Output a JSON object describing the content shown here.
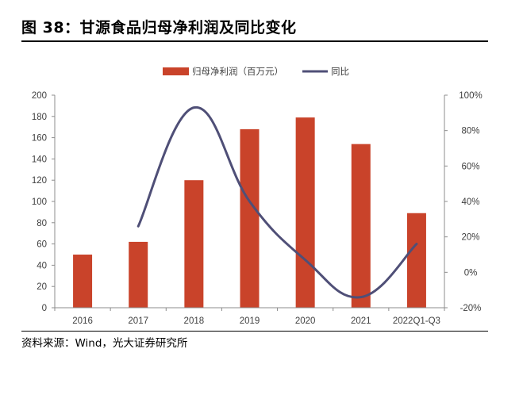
{
  "figure": {
    "title": "图 38：甘源食品归母净利润及同比变化",
    "source": "资料来源：Wind，光大证券研究所"
  },
  "colors": {
    "bar": "#C9432A",
    "line": "#4F4F77",
    "axis": "#8C8C8C",
    "text": "#404040"
  },
  "chart_data": {
    "type": "bar+line",
    "categories": [
      "2016",
      "2017",
      "2018",
      "2019",
      "2020",
      "2021",
      "2022Q1-Q3"
    ],
    "series": [
      {
        "name": "归母净利润（百万元）",
        "type": "bar",
        "axis": "left",
        "values": [
          50,
          62,
          120,
          168,
          179,
          154,
          89
        ]
      },
      {
        "name": "同比",
        "type": "line",
        "axis": "right",
        "smooth": true,
        "unit": "%",
        "values": [
          null,
          26,
          93,
          40,
          7,
          -14,
          16
        ]
      }
    ],
    "y_left": {
      "min": 0,
      "max": 200,
      "step": 20,
      "ticks": [
        "0",
        "20",
        "40",
        "60",
        "80",
        "100",
        "120",
        "140",
        "160",
        "180",
        "200"
      ]
    },
    "y_right": {
      "min": -20,
      "max": 100,
      "step": 20,
      "ticks": [
        "-20%",
        "0%",
        "20%",
        "40%",
        "60%",
        "80%",
        "100%"
      ]
    },
    "legend_position": "top-center",
    "grid": false
  }
}
